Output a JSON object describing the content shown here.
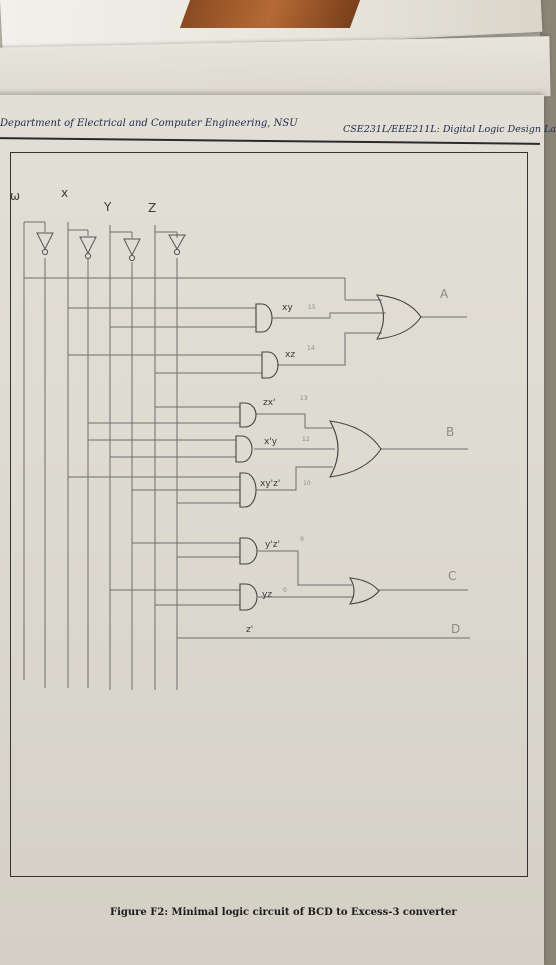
{
  "header": {
    "left": "Department of Electrical and Computer Engineering, NSU",
    "right": "CSE231L/EEE211L: Digital Logic Design La"
  },
  "caption": "Figure F2: Minimal logic circuit of BCD to Excess-3 converter",
  "inputs": [
    "ω",
    "x",
    "Y",
    "Z"
  ],
  "gate_labels": {
    "xy": "xy",
    "xy_num": "15",
    "xz": "xz",
    "xz_num": "14",
    "zx": "zx'",
    "zx_num": "13",
    "xy2": "x'y",
    "xy2_num": "12",
    "xyz": "xy'z'",
    "xyz_num": "10",
    "yz1": "y'z'",
    "yz1_num": "9",
    "yz2": "yz",
    "yz2_num": "0",
    "zp": "z'"
  },
  "outputs": [
    "A",
    "B",
    "C",
    "D"
  ]
}
